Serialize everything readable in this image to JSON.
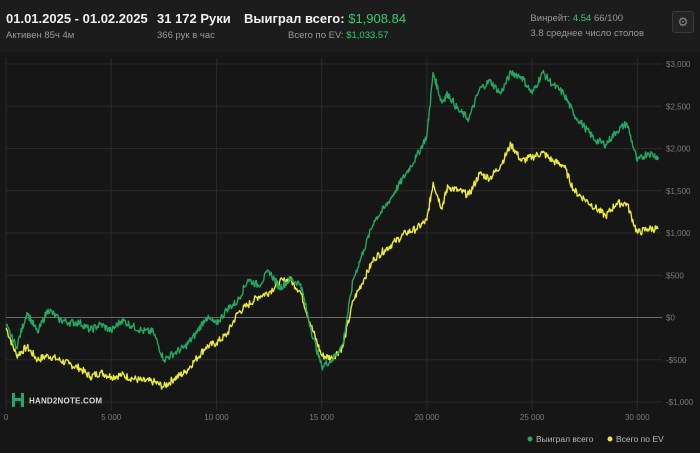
{
  "header": {
    "date_range": "01.01.2025 - 01.02.2025",
    "active_time": "Активен 85ч 4м",
    "hands_count": "31 172 Руки",
    "hands_per_hour": "366 рук в час",
    "won_label": "Выиграл всего:",
    "won_value": "$1,908.84",
    "ev_label": "Всего по EV:",
    "ev_value": "$1,033.57",
    "winrate_label": "Винрейт:",
    "winrate_value": "4.54",
    "winrate_unit": "66/100",
    "avg_tables": "3.8 среднее число столов",
    "settings_icon": "gear-icon"
  },
  "logo": {
    "text": "HAND2NOTE.COM",
    "icon": "h2n-logo-icon"
  },
  "chart_data": {
    "type": "line",
    "xlim": [
      0,
      31172
    ],
    "ylim": [
      -1000,
      3000
    ],
    "x_ticks": [
      0,
      5000,
      10000,
      15000,
      20000,
      25000,
      30000
    ],
    "x_tick_labels": [
      "0",
      "5 000",
      "10 000",
      "15 000",
      "20 000",
      "25 000",
      "30 000"
    ],
    "y_ticks": [
      3000,
      2500,
      2000,
      1500,
      1000,
      500,
      0,
      -500,
      -1000
    ],
    "y_tick_labels": [
      "$3,000",
      "$2,500",
      "$2,000",
      "$1,500",
      "$1,000",
      "$500",
      "$0",
      "-$500",
      "-$1,000"
    ],
    "grid": true,
    "legend_position": "bottom-right",
    "colors": {
      "won": "#22a862",
      "ev": "#eaea3a",
      "zero_line": "#6a6a6a",
      "grid": "#2a2a2a"
    },
    "series": [
      {
        "name": "Выиграл всего",
        "key": "won",
        "x": [
          0,
          500,
          1000,
          1500,
          2000,
          2500,
          3000,
          3500,
          4000,
          4500,
          5000,
          5500,
          6000,
          6500,
          7000,
          7500,
          8000,
          8500,
          9000,
          9500,
          10000,
          10500,
          11000,
          11500,
          12000,
          12500,
          13000,
          13500,
          14000,
          14500,
          15000,
          15500,
          16000,
          16500,
          17000,
          17500,
          18000,
          18500,
          19000,
          19500,
          20000,
          20300,
          20700,
          21000,
          21500,
          22000,
          22500,
          23000,
          23500,
          24000,
          24500,
          25000,
          25500,
          26000,
          26500,
          27000,
          27500,
          28000,
          28500,
          29000,
          29500,
          30000,
          30500,
          31000
        ],
        "y": [
          -100,
          -350,
          60,
          -180,
          100,
          -20,
          -60,
          -60,
          -150,
          -80,
          -160,
          -30,
          -100,
          -160,
          -170,
          -500,
          -420,
          -350,
          -200,
          0,
          -80,
          100,
          190,
          450,
          380,
          550,
          350,
          450,
          400,
          -150,
          -580,
          -500,
          -320,
          450,
          800,
          1150,
          1300,
          1500,
          1700,
          1900,
          2150,
          2900,
          2550,
          2650,
          2450,
          2350,
          2700,
          2800,
          2650,
          2900,
          2850,
          2650,
          2900,
          2750,
          2650,
          2400,
          2250,
          2100,
          2050,
          2200,
          2300,
          1850,
          1950,
          1900
        ]
      },
      {
        "name": "Всего по EV",
        "key": "ev",
        "x": [
          0,
          500,
          1000,
          1500,
          2000,
          2500,
          3000,
          3500,
          4000,
          4500,
          5000,
          5500,
          6000,
          6500,
          7000,
          7500,
          8000,
          8500,
          9000,
          9500,
          10000,
          10500,
          11000,
          11500,
          12000,
          12500,
          13000,
          13500,
          14000,
          14500,
          15000,
          15500,
          16000,
          16500,
          17000,
          17500,
          18000,
          18500,
          19000,
          19500,
          20000,
          20300,
          20700,
          21000,
          21500,
          22000,
          22500,
          23000,
          23500,
          24000,
          24500,
          25000,
          25500,
          26000,
          26500,
          27000,
          27500,
          28000,
          28500,
          29000,
          29500,
          30000,
          30500,
          31000
        ],
        "y": [
          -120,
          -450,
          -350,
          -500,
          -450,
          -500,
          -550,
          -600,
          -700,
          -650,
          -700,
          -680,
          -720,
          -750,
          -760,
          -820,
          -720,
          -650,
          -500,
          -350,
          -300,
          -200,
          50,
          150,
          250,
          300,
          420,
          450,
          300,
          -100,
          -450,
          -480,
          -350,
          200,
          450,
          700,
          800,
          900,
          1000,
          1050,
          1150,
          1600,
          1300,
          1550,
          1500,
          1450,
          1700,
          1650,
          1800,
          2050,
          1850,
          1900,
          1950,
          1850,
          1800,
          1500,
          1400,
          1300,
          1200,
          1350,
          1350,
          1000,
          1050,
          1050
        ]
      }
    ]
  }
}
